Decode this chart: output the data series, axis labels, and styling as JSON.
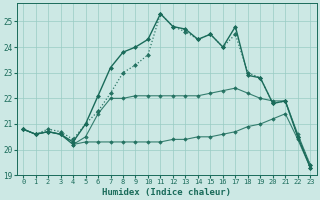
{
  "xlabel": "Humidex (Indice chaleur)",
  "bg_color": "#cce8e4",
  "grid_color": "#99ccc4",
  "line_color": "#1a6b5a",
  "xlim": [
    -0.5,
    23.5
  ],
  "ylim": [
    19,
    25.7
  ],
  "yticks": [
    19,
    20,
    21,
    22,
    23,
    24,
    25
  ],
  "xticks": [
    0,
    1,
    2,
    3,
    4,
    5,
    6,
    7,
    8,
    9,
    10,
    11,
    12,
    13,
    14,
    15,
    16,
    17,
    18,
    19,
    20,
    21,
    22,
    23
  ],
  "series": [
    {
      "y": [
        20.8,
        20.6,
        20.7,
        20.6,
        20.2,
        20.3,
        20.3,
        20.3,
        20.3,
        20.3,
        20.3,
        20.3,
        20.4,
        20.4,
        20.5,
        20.5,
        20.6,
        20.7,
        20.9,
        21.0,
        21.2,
        21.4,
        20.4,
        19.3
      ],
      "lw": 0.8,
      "ls": "-",
      "marker": "D",
      "ms": 1.8,
      "alpha": 0.85,
      "zorder": 2
    },
    {
      "y": [
        20.8,
        20.6,
        20.7,
        20.6,
        20.2,
        20.5,
        21.4,
        22.0,
        22.0,
        22.1,
        22.1,
        22.1,
        22.1,
        22.1,
        22.1,
        22.2,
        22.3,
        22.4,
        22.2,
        22.0,
        21.9,
        21.9,
        20.6,
        19.4
      ],
      "lw": 0.8,
      "ls": "-",
      "marker": "D",
      "ms": 1.8,
      "alpha": 0.85,
      "zorder": 3
    },
    {
      "y": [
        20.8,
        20.6,
        20.8,
        20.7,
        20.4,
        21.0,
        21.5,
        22.2,
        23.0,
        23.3,
        23.7,
        25.3,
        24.8,
        24.6,
        24.3,
        24.5,
        24.0,
        24.5,
        23.0,
        22.8,
        21.8,
        21.9,
        20.5,
        19.4
      ],
      "lw": 0.9,
      "ls": ":",
      "marker": "D",
      "ms": 2.0,
      "alpha": 0.9,
      "zorder": 4
    },
    {
      "y": [
        20.8,
        20.6,
        20.7,
        20.6,
        20.3,
        21.0,
        22.1,
        23.2,
        23.8,
        24.0,
        24.3,
        25.3,
        24.8,
        24.7,
        24.3,
        24.5,
        24.0,
        24.8,
        22.9,
        22.8,
        21.8,
        21.9,
        20.5,
        19.3
      ],
      "lw": 1.0,
      "ls": "-",
      "marker": "D",
      "ms": 2.0,
      "alpha": 1.0,
      "zorder": 5
    }
  ]
}
